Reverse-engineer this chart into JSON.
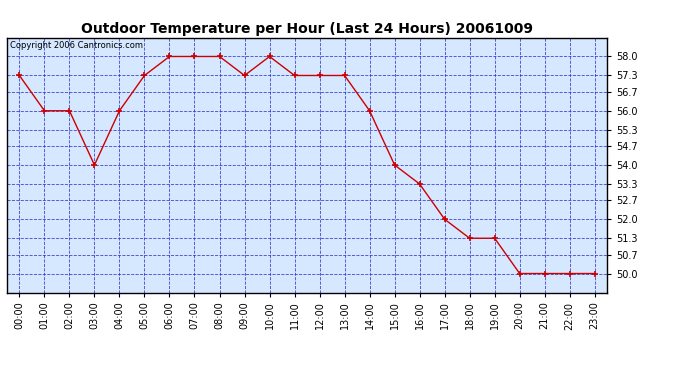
{
  "title": "Outdoor Temperature per Hour (Last 24 Hours) 20061009",
  "copyright_text": "Copyright 2006 Cantronics.com",
  "hours": [
    "00:00",
    "01:00",
    "02:00",
    "03:00",
    "04:00",
    "05:00",
    "06:00",
    "07:00",
    "08:00",
    "09:00",
    "10:00",
    "11:00",
    "12:00",
    "13:00",
    "14:00",
    "15:00",
    "16:00",
    "17:00",
    "18:00",
    "19:00",
    "20:00",
    "21:00",
    "22:00",
    "23:00"
  ],
  "temperatures": [
    57.3,
    56.0,
    56.0,
    54.0,
    56.0,
    57.3,
    58.0,
    58.0,
    58.0,
    57.3,
    58.0,
    57.3,
    57.3,
    57.3,
    56.0,
    54.0,
    53.3,
    52.0,
    51.3,
    51.3,
    50.0,
    50.0,
    50.0,
    50.0
  ],
  "ylim_min": 49.3,
  "ylim_max": 58.7,
  "yticks": [
    50.0,
    50.7,
    51.3,
    52.0,
    52.7,
    53.3,
    54.0,
    54.7,
    55.3,
    56.0,
    56.7,
    57.3,
    58.0
  ],
  "line_color": "#cc0000",
  "marker_color": "#cc0000",
  "bg_color": "#d5e8ff",
  "fig_bg_color": "#ffffff",
  "grid_color": "#3333cc",
  "border_color": "#000000",
  "title_color": "#000000",
  "copyright_color": "#000000",
  "axis_label_color": "#000000",
  "title_fontsize": 10,
  "copyright_fontsize": 6,
  "tick_fontsize": 7,
  "ytick_fontsize": 7
}
